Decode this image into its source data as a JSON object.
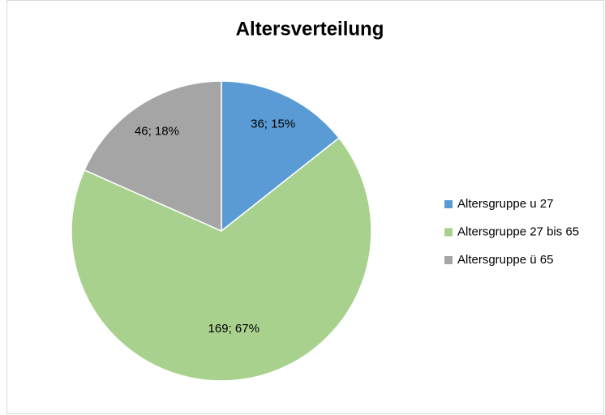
{
  "chart_data": {
    "type": "pie",
    "title": "Altersverteilung",
    "categories": [
      "Altersgruppe u 27",
      "Altersgruppe 27 bis 65",
      "Altersgruppe ü 65"
    ],
    "values": [
      36,
      169,
      46
    ],
    "value_labels": [
      "36; 15%",
      "169; 67%",
      "46; 18%"
    ],
    "colors": [
      "#5b9bd5",
      "#a9d18e",
      "#a5a5a5"
    ],
    "legend": "right"
  }
}
